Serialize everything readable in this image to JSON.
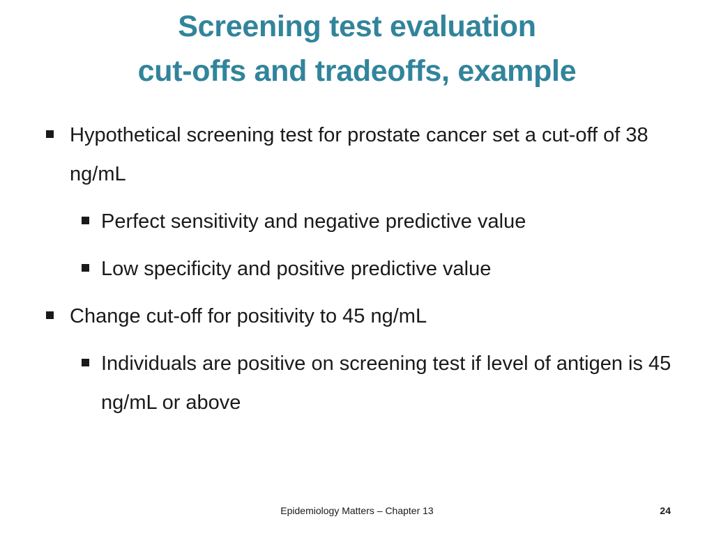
{
  "slide": {
    "title_line1": "Screening test evaluation",
    "title_line2": "cut-offs and tradeoffs, example",
    "bullets": [
      {
        "level": 1,
        "text": "Hypothetical screening test for prostate cancer set a cut-off of 38 ng/mL"
      },
      {
        "level": 2,
        "text": "Perfect sensitivity and negative predictive value"
      },
      {
        "level": 2,
        "text": "Low specificity and positive predictive value"
      },
      {
        "level": 1,
        "text": "Change cut-off for positivity to 45 ng/mL"
      },
      {
        "level": 2,
        "text": "Individuals are positive on screening test if level of antigen is 45 ng/mL or above"
      }
    ],
    "footer": "Epidemiology Matters – Chapter 13",
    "page_number": "24",
    "colors": {
      "title": "#31849b",
      "text": "#1a1a1a",
      "background": "#ffffff"
    }
  }
}
